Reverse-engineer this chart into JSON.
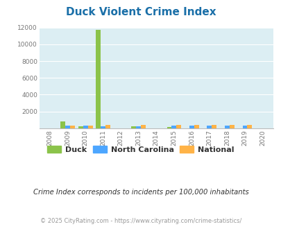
{
  "title": "Duck Violent Crime Index",
  "years": [
    2008,
    2009,
    2010,
    2011,
    2012,
    2013,
    2014,
    2015,
    2016,
    2017,
    2018,
    2019,
    2020
  ],
  "duck": [
    0,
    820,
    200,
    11700,
    0,
    220,
    0,
    180,
    0,
    0,
    0,
    0,
    0
  ],
  "north_carolina": [
    0,
    290,
    280,
    270,
    0,
    270,
    0,
    290,
    340,
    310,
    290,
    290,
    0
  ],
  "national": [
    0,
    350,
    350,
    390,
    0,
    370,
    0,
    370,
    380,
    380,
    370,
    360,
    0
  ],
  "duck_color": "#8bc34a",
  "nc_color": "#4da6ff",
  "national_color": "#ffb347",
  "bg_color": "#dceef3",
  "ylim": [
    0,
    12000
  ],
  "yticks": [
    0,
    2000,
    4000,
    6000,
    8000,
    10000,
    12000
  ],
  "subtitle": "Crime Index corresponds to incidents per 100,000 inhabitants",
  "footer": "© 2025 CityRating.com - https://www.cityrating.com/crime-statistics/",
  "title_color": "#1a6fa8",
  "subtitle_color": "#333333",
  "footer_color": "#999999"
}
